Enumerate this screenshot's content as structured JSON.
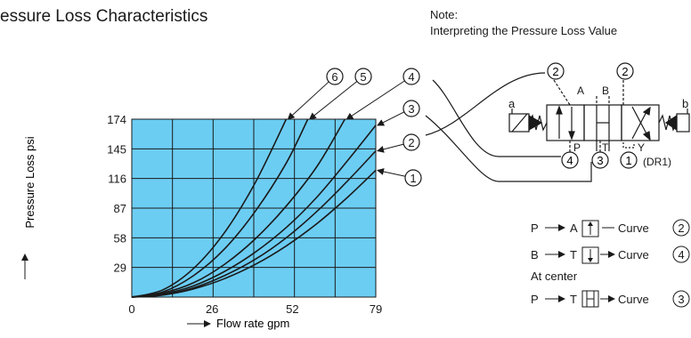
{
  "title": "essure Loss Characteristics",
  "note": {
    "label": "Note:",
    "text": "Interpreting the Pressure Loss Value"
  },
  "chart_data": {
    "type": "line",
    "xlabel": "Flow rate gpm",
    "ylabel": "Pressure Loss psi",
    "x_ticks": [
      0,
      26,
      52,
      79
    ],
    "y_ticks": [
      29,
      58,
      87,
      116,
      145,
      174
    ],
    "xlim": [
      0,
      79
    ],
    "ylim": [
      0,
      174
    ],
    "grid": true,
    "plot_background": "#6ccdf3",
    "series": [
      {
        "name": "1",
        "x": [
          0,
          10,
          20,
          30,
          40,
          50,
          60,
          70,
          79
        ],
        "y": [
          0,
          2,
          8,
          18,
          32,
          50,
          72,
          98,
          124
        ]
      },
      {
        "name": "2",
        "x": [
          0,
          10,
          20,
          30,
          40,
          50,
          60,
          70,
          79
        ],
        "y": [
          0,
          2,
          9,
          21,
          37,
          58,
          84,
          114,
          143
        ]
      },
      {
        "name": "3",
        "x": [
          0,
          10,
          20,
          30,
          40,
          50,
          60,
          70,
          79
        ],
        "y": [
          0,
          3,
          11,
          25,
          44,
          68,
          98,
          134,
          168
        ]
      },
      {
        "name": "4",
        "x": [
          0,
          10,
          20,
          30,
          40,
          50,
          60,
          69
        ],
        "y": [
          0,
          4,
          14,
          32,
          57,
          89,
          128,
          174
        ]
      },
      {
        "name": "5",
        "x": [
          0,
          10,
          20,
          30,
          40,
          50,
          57
        ],
        "y": [
          0,
          5,
          21,
          47,
          84,
          131,
          174
        ]
      },
      {
        "name": "6",
        "x": [
          0,
          10,
          20,
          30,
          40,
          50
        ],
        "y": [
          0,
          7,
          28,
          63,
          112,
          174
        ]
      }
    ]
  },
  "diagram": {
    "ports": {
      "a": "a",
      "b": "b",
      "A": "A",
      "B": "B",
      "P": "P",
      "T": "T",
      "Y": "Y"
    },
    "dr1": "(DR1)",
    "callouts": [
      "2",
      "2",
      "4",
      "3",
      "1"
    ]
  },
  "legend_rows": [
    {
      "from": "P",
      "to": "A",
      "curve_label": "Curve",
      "curve": "2"
    },
    {
      "from": "B",
      "to": "T",
      "curve_label": "Curve",
      "curve": "4"
    },
    {
      "from": "P",
      "to": "T",
      "curve_label": "Curve",
      "curve": "3"
    }
  ],
  "legend_center": "At center"
}
